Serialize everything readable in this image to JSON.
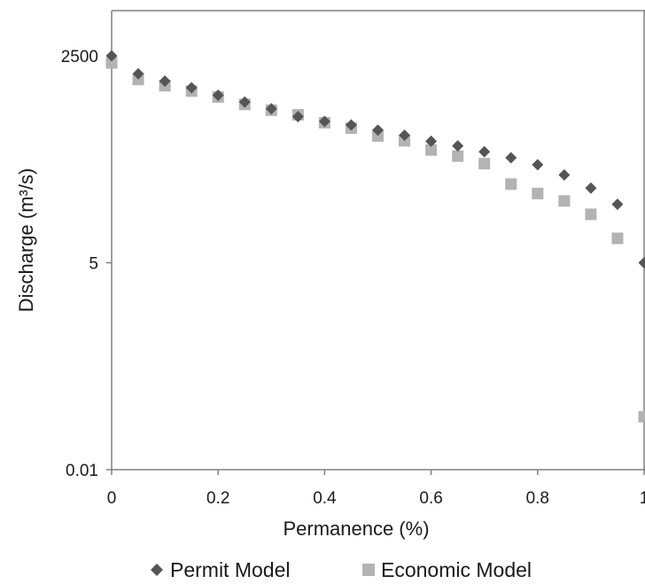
{
  "chart_data": {
    "type": "scatter",
    "title": "",
    "xlabel": "Permanence (%)",
    "ylabel": "Discharge (m³/s)",
    "xlim": [
      0,
      1
    ],
    "ylim": [
      0.01,
      2500
    ],
    "y_scale": "log",
    "x_ticks": [
      0,
      0.2,
      0.4,
      0.6,
      0.8,
      1
    ],
    "x_tick_labels": [
      "0",
      "0.2",
      "0.4",
      "0.6",
      "0.8",
      "1"
    ],
    "y_ticks": [
      0.01,
      5,
      2500
    ],
    "y_tick_labels": [
      "0.01",
      "5",
      "2500"
    ],
    "grid": false,
    "legend_position": "bottom",
    "series": [
      {
        "name": "Permit Model",
        "marker": "diamond",
        "color": "#555555",
        "x": [
          0,
          0.05,
          0.1,
          0.15,
          0.2,
          0.25,
          0.3,
          0.35,
          0.4,
          0.45,
          0.5,
          0.55,
          0.6,
          0.65,
          0.7,
          0.75,
          0.8,
          0.85,
          0.9,
          0.95,
          1.0
        ],
        "y": [
          2500,
          1460,
          1170,
          960,
          765,
          625,
          510,
          403,
          349,
          314,
          268,
          230,
          192,
          167,
          140,
          117,
          95,
          70,
          47,
          29,
          5
        ]
      },
      {
        "name": "Economic Model",
        "marker": "square",
        "color": "#b3b3b3",
        "x": [
          0,
          0.05,
          0.1,
          0.15,
          0.2,
          0.25,
          0.3,
          0.35,
          0.4,
          0.45,
          0.5,
          0.55,
          0.6,
          0.65,
          0.7,
          0.75,
          0.8,
          0.85,
          0.9,
          0.95,
          1.0
        ],
        "y": [
          2020,
          1230,
          1020,
          868,
          725,
          582,
          488,
          425,
          335,
          285,
          225,
          195,
          148,
          123,
          98,
          53,
          40,
          32,
          21.4,
          10.4,
          0.049
        ]
      }
    ]
  }
}
